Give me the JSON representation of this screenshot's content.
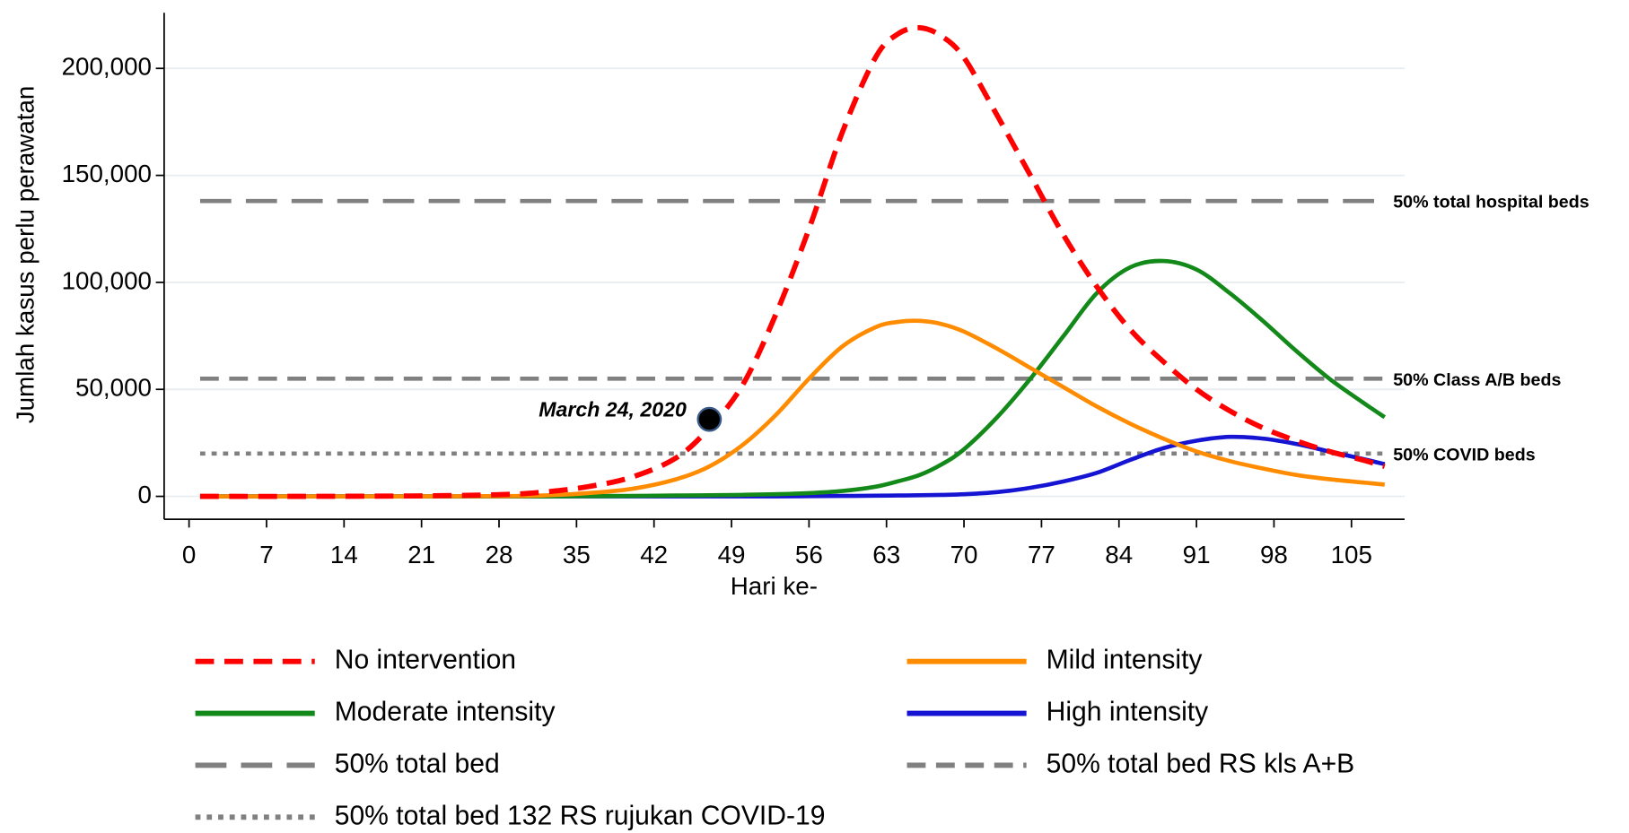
{
  "chart_data": {
    "type": "line",
    "xlabel": "Hari ke-",
    "ylabel": "Jumlah kasus perlu perawatan",
    "x": [
      1,
      10,
      20,
      28,
      32,
      36,
      40,
      44,
      47,
      50,
      53,
      56,
      59,
      62,
      64,
      66,
      68,
      70,
      73,
      76,
      79,
      82,
      85,
      88,
      91,
      94,
      97,
      100,
      103,
      106,
      108
    ],
    "series": [
      {
        "name": "No intervention",
        "color": "#ff0000",
        "dash": "dashed",
        "values": [
          0,
          0,
          200,
          800,
          2000,
          4500,
          9000,
          18000,
          32000,
          52000,
          85000,
          125000,
          170000,
          205000,
          216000,
          219000,
          215000,
          205000,
          178000,
          150000,
          122000,
          98000,
          78000,
          63000,
          50000,
          40000,
          32000,
          26000,
          21000,
          17000,
          14000
        ]
      },
      {
        "name": "Mild intensity",
        "color": "#ff8c00",
        "dash": "solid",
        "values": [
          0,
          0,
          0,
          100,
          400,
          1500,
          3500,
          8000,
          14000,
          24000,
          38000,
          55000,
          70000,
          79000,
          81500,
          82000,
          80500,
          77000,
          69000,
          60000,
          51000,
          42000,
          34000,
          27000,
          21000,
          16500,
          13000,
          10000,
          8000,
          6500,
          5500
        ]
      },
      {
        "name": "Moderate intensity",
        "color": "#13891a",
        "dash": "solid",
        "values": [
          0,
          0,
          0,
          0,
          0,
          100,
          200,
          400,
          500,
          700,
          1000,
          1500,
          2500,
          4500,
          7000,
          10000,
          15000,
          22000,
          37000,
          55000,
          75000,
          95000,
          107000,
          110000,
          106000,
          95000,
          82000,
          68000,
          55000,
          44000,
          37000
        ]
      },
      {
        "name": "High intensity",
        "color": "#1414d2",
        "dash": "solid",
        "values": [
          0,
          0,
          0,
          0,
          0,
          0,
          0,
          0,
          0,
          0,
          0,
          100,
          200,
          300,
          400,
          500,
          700,
          1000,
          2000,
          4000,
          7000,
          11000,
          17000,
          22500,
          26000,
          27800,
          27000,
          24500,
          21000,
          17500,
          15000
        ]
      }
    ],
    "reference_lines": [
      {
        "name": "50% total bed",
        "label": "50% total hospital beds",
        "value": 138000,
        "color": "#808080",
        "dash": "longdash"
      },
      {
        "name": "50% total bed RS kls A+B",
        "label": "50% Class A/B beds",
        "value": 55000,
        "color": "#808080",
        "dash": "dashed"
      },
      {
        "name": "50% total bed 132 RS rujukan COVID-19",
        "label": "50% COVID beds",
        "value": 20000,
        "color": "#808080",
        "dash": "dotted"
      }
    ],
    "annotation": {
      "text": "March 24, 2020",
      "x": 47,
      "y": 36000
    },
    "xlim": [
      -2.25,
      109.8
    ],
    "ylim": [
      -10700,
      226000
    ],
    "xticks": [
      0,
      7,
      14,
      21,
      28,
      35,
      42,
      49,
      56,
      63,
      70,
      77,
      84,
      91,
      98,
      105
    ],
    "yticks": [
      0,
      {
        "value": 50000,
        "label": "50,000"
      },
      {
        "value": 100000,
        "label": "100,000"
      },
      {
        "value": 150000,
        "label": "150,000"
      },
      {
        "value": 200000,
        "label": "200,000"
      }
    ],
    "grid": true
  }
}
